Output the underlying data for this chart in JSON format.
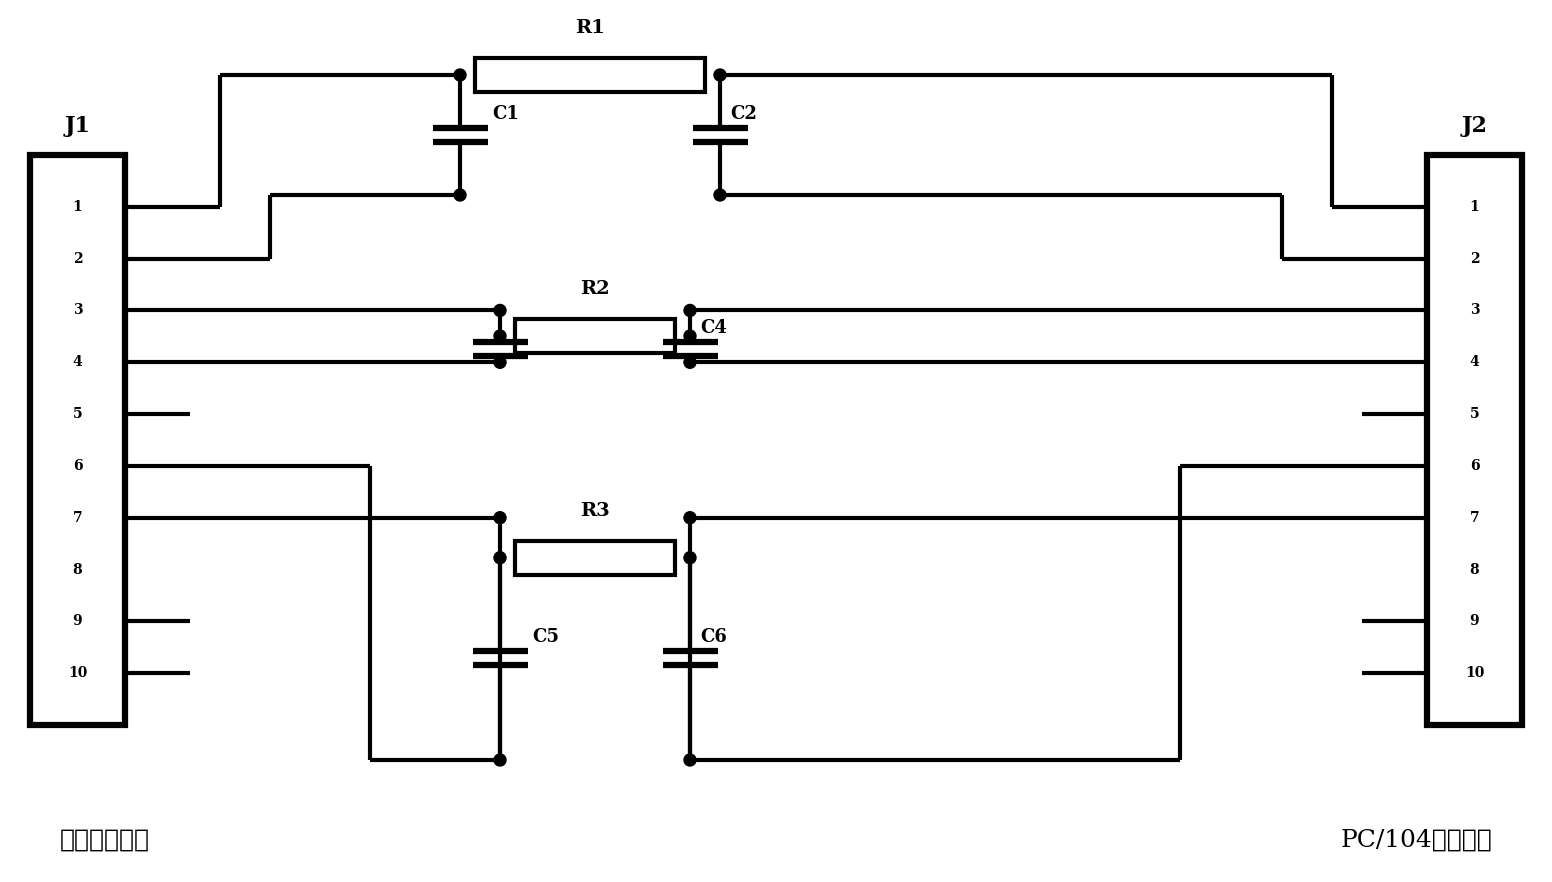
{
  "bg_color": "#ffffff",
  "line_color": "#000000",
  "line_width": 3.0,
  "j1_label": "J1",
  "j2_label": "J2",
  "j1_pins": [
    "1",
    "2",
    "3",
    "4",
    "5",
    "6",
    "7",
    "8",
    "9",
    "10"
  ],
  "j2_pins": [
    "1",
    "2",
    "3",
    "4",
    "5",
    "6",
    "7",
    "8",
    "9",
    "10"
  ],
  "bottom_left_text": "信号输入端口",
  "bottom_right_text": "PC/104总线接口"
}
